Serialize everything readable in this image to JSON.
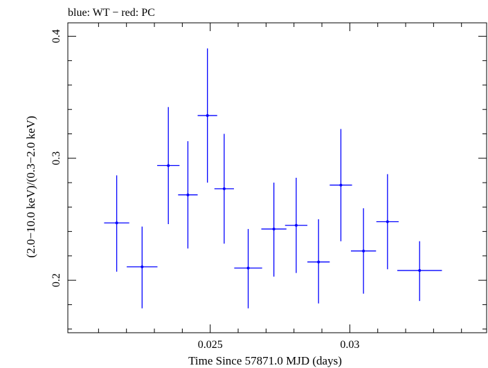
{
  "chart_data": {
    "type": "scatter",
    "title": "blue: WT − red: PC",
    "xlabel": "Time Since 57871.0 MJD (days)",
    "ylabel": "(2.0−10.0 keV)/(0.3−2.0 keV)",
    "xlim": [
      0.0199,
      0.0349
    ],
    "ylim": [
      0.157,
      0.411
    ],
    "xticks": [
      0.025,
      0.03
    ],
    "xtick_labels": [
      "0.025",
      "0.03"
    ],
    "yticks": [
      0.2,
      0.3,
      0.4
    ],
    "ytick_labels": [
      "0.2",
      "0.3",
      "0.4"
    ],
    "grid": false,
    "series": [
      {
        "color": "#0000ff",
        "points": [
          {
            "x": 0.02165,
            "y": 0.247,
            "xerr": 0.00045,
            "ylo": 0.207,
            "yhi": 0.286
          },
          {
            "x": 0.02256,
            "y": 0.211,
            "xerr": 0.00055,
            "ylo": 0.177,
            "yhi": 0.244
          },
          {
            "x": 0.0235,
            "y": 0.294,
            "xerr": 0.0004,
            "ylo": 0.246,
            "yhi": 0.342
          },
          {
            "x": 0.0242,
            "y": 0.27,
            "xerr": 0.00035,
            "ylo": 0.226,
            "yhi": 0.314
          },
          {
            "x": 0.0249,
            "y": 0.335,
            "xerr": 0.00035,
            "ylo": 0.28,
            "yhi": 0.39
          },
          {
            "x": 0.0255,
            "y": 0.275,
            "xerr": 0.00035,
            "ylo": 0.23,
            "yhi": 0.32
          },
          {
            "x": 0.02636,
            "y": 0.21,
            "xerr": 0.0005,
            "ylo": 0.177,
            "yhi": 0.242
          },
          {
            "x": 0.02728,
            "y": 0.242,
            "xerr": 0.00045,
            "ylo": 0.203,
            "yhi": 0.28
          },
          {
            "x": 0.02808,
            "y": 0.245,
            "xerr": 0.0004,
            "ylo": 0.206,
            "yhi": 0.284
          },
          {
            "x": 0.02888,
            "y": 0.215,
            "xerr": 0.0004,
            "ylo": 0.181,
            "yhi": 0.25
          },
          {
            "x": 0.02968,
            "y": 0.278,
            "xerr": 0.0004,
            "ylo": 0.232,
            "yhi": 0.324
          },
          {
            "x": 0.03049,
            "y": 0.224,
            "xerr": 0.00045,
            "ylo": 0.189,
            "yhi": 0.259
          },
          {
            "x": 0.03135,
            "y": 0.248,
            "xerr": 0.0004,
            "ylo": 0.209,
            "yhi": 0.287
          },
          {
            "x": 0.0325,
            "y": 0.208,
            "xerr": 0.0008,
            "ylo": 0.183,
            "yhi": 0.232
          }
        ]
      }
    ]
  }
}
